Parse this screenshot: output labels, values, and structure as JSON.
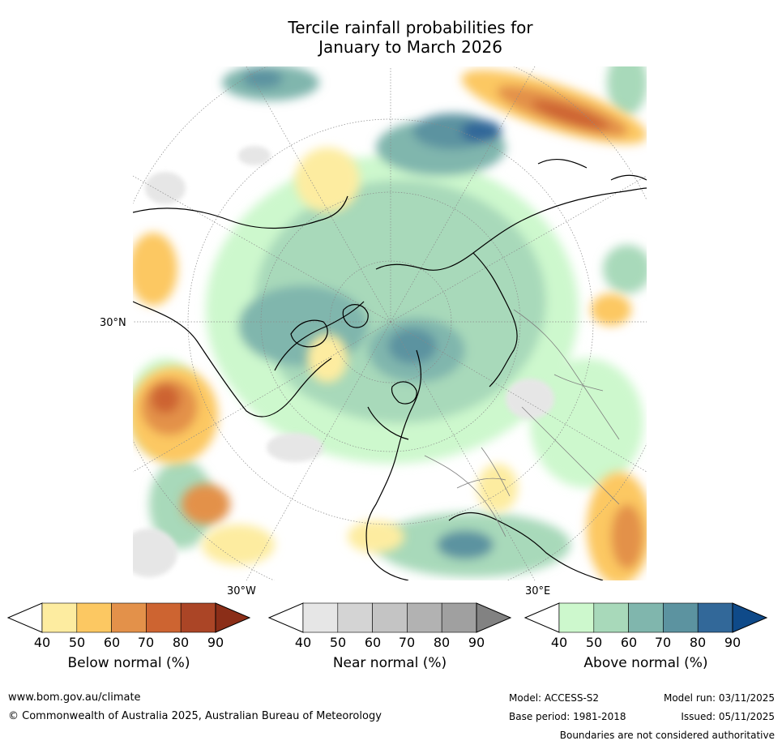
{
  "title": {
    "line1": "Tercile rainfall probabilities for",
    "line2": "January to March 2026"
  },
  "map": {
    "projection": "north-polar-stereographic",
    "lat_label": "30°N",
    "lon_labels": {
      "west": "30°W",
      "east": "30°E"
    }
  },
  "colorbars": [
    {
      "name": "below",
      "title": "Below normal (%)",
      "ticks": [
        "40",
        "50",
        "60",
        "70",
        "80",
        "90"
      ],
      "colors": [
        "#fdeca0",
        "#fcc862",
        "#e3914a",
        "#cd6431",
        "#ab4526",
        "#8b2e18"
      ]
    },
    {
      "name": "near",
      "title": "Near normal (%)",
      "ticks": [
        "40",
        "50",
        "60",
        "70",
        "80",
        "90"
      ],
      "colors": [
        "#e6e6e6",
        "#d4d4d4",
        "#c4c4c4",
        "#b2b2b2",
        "#a0a0a0",
        "#828282"
      ]
    },
    {
      "name": "above",
      "title": "Above normal (%)",
      "ticks": [
        "40",
        "50",
        "60",
        "70",
        "80",
        "90"
      ],
      "colors": [
        "#cdf8cd",
        "#a8d9ba",
        "#80b6ad",
        "#5c93a0",
        "#326899",
        "#0f4a89"
      ]
    }
  ],
  "footer": {
    "website": "www.bom.gov.au/climate",
    "copyright": "© Commonwealth of Australia 2025, Australian Bureau of Meteorology",
    "model": "Model: ACCESS-S2",
    "model_run": "Model run: 03/11/2025",
    "base_period": "Base period: 1981-2018",
    "issued": "Issued: 05/11/2025",
    "disclaimer": "Boundaries are not considered authoritative"
  }
}
